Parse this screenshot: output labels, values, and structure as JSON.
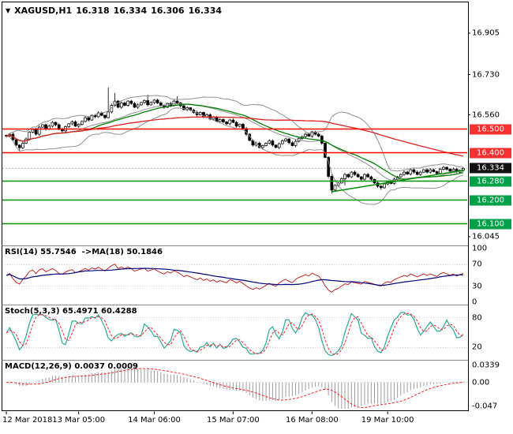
{
  "header": {
    "dropdown_icon": "▼",
    "symbol": "XAGUSD,H1",
    "open": "16.318",
    "high": "16.334",
    "low": "16.306",
    "close": "16.334"
  },
  "price_axis": {
    "plain_ticks": [
      {
        "label": "16.905",
        "value": 16.905
      },
      {
        "label": "16.730",
        "value": 16.73
      },
      {
        "label": "16.560",
        "value": 16.56
      },
      {
        "label": "16.045",
        "value": 16.045
      }
    ],
    "badges": [
      {
        "label": "16.500",
        "value": 16.5,
        "bg": "#f83030",
        "role": "resistance"
      },
      {
        "label": "16.400",
        "value": 16.4,
        "bg": "#f83030",
        "role": "resistance"
      },
      {
        "label": "16.334",
        "value": 16.334,
        "bg": "#111111",
        "role": "current-price"
      },
      {
        "label": "16.280",
        "value": 16.28,
        "bg": "#00a048",
        "role": "support"
      },
      {
        "label": "16.200",
        "value": 16.2,
        "bg": "#00a048",
        "role": "support"
      },
      {
        "label": "16.100",
        "value": 16.1,
        "bg": "#00a048",
        "role": "support"
      }
    ]
  },
  "time_axis": {
    "labels": [
      "12 Mar 2018",
      "13 Mar 05:00",
      "14 Mar 06:00",
      "15 Mar 07:00",
      "16 Mar 08:00",
      "19 Mar 10:00"
    ],
    "bar_indices": [
      0,
      22,
      45,
      69,
      93,
      116
    ]
  },
  "panels": {
    "rsi": {
      "label": "RSI(14) 55.7546  ->MA(18) 50.1846",
      "ticks": [
        {
          "label": "100",
          "value": 100
        },
        {
          "label": "70",
          "value": 70
        },
        {
          "label": "30",
          "value": 30
        },
        {
          "label": "0",
          "value": 0
        }
      ],
      "levels": [
        70,
        30
      ],
      "main_color": "#c22727",
      "ma_color": "#00007f"
    },
    "stoch": {
      "label": "Stoch(5,3,3) 65.4971 60.4288",
      "ticks": [
        {
          "label": "80",
          "value": 80
        },
        {
          "label": "20",
          "value": 20
        }
      ],
      "levels": [
        80,
        20
      ],
      "main_color": "#2ca89a",
      "signal_color": "#ff2020"
    },
    "macd": {
      "label": "MACD(12,26,9) 0.0037 0.0009",
      "ticks": [
        {
          "label": "0.0339",
          "value": 0.0339
        },
        {
          "label": "0.00",
          "value": 0
        },
        {
          "label": "-0.047",
          "value": -0.047
        }
      ],
      "levels": [
        0
      ],
      "hist_color": "#9c9c9c",
      "signal_color": "#ff2020"
    }
  },
  "chart_data": {
    "type": "candlestick",
    "symbol": "XAGUSD",
    "timeframe": "H1",
    "title": "XAGUSD,H1 16.318 16.334 16.306 16.334",
    "ylim": [
      16.012,
      17.035
    ],
    "visible_price_ticks": [
      16.905,
      16.73,
      16.56,
      16.045
    ],
    "closes": [
      16.47,
      16.478,
      16.455,
      16.432,
      16.421,
      16.44,
      16.458,
      16.487,
      16.498,
      16.478,
      16.508,
      16.518,
      16.5,
      16.512,
      16.528,
      16.518,
      16.498,
      16.492,
      16.51,
      16.522,
      16.53,
      16.512,
      16.52,
      16.532,
      16.548,
      16.538,
      16.558,
      16.552,
      16.568,
      16.558,
      16.548,
      16.572,
      16.6,
      16.618,
      16.592,
      16.61,
      16.6,
      16.618,
      16.608,
      16.592,
      16.602,
      16.612,
      16.62,
      16.602,
      16.612,
      16.622,
      16.61,
      16.6,
      16.592,
      16.608,
      16.6,
      16.618,
      16.61,
      16.598,
      16.582,
      16.59,
      16.58,
      16.57,
      16.56,
      16.57,
      16.552,
      16.56,
      16.542,
      16.55,
      16.532,
      16.54,
      16.53,
      16.522,
      16.538,
      16.528,
      16.512,
      16.52,
      16.502,
      16.478,
      16.452,
      16.432,
      16.44,
      16.422,
      16.43,
      16.44,
      16.45,
      16.432,
      16.422,
      16.438,
      16.45,
      16.458,
      16.442,
      16.43,
      16.448,
      16.46,
      16.468,
      16.478,
      16.47,
      16.488,
      16.478,
      16.47,
      16.44,
      16.38,
      16.3,
      16.242,
      16.262,
      16.272,
      16.29,
      16.308,
      16.298,
      16.318,
      16.308,
      16.298,
      16.288,
      16.308,
      16.298,
      16.288,
      16.272,
      16.258,
      16.252,
      16.268,
      16.278,
      16.27,
      16.288,
      16.298,
      16.308,
      16.318,
      16.31,
      16.328,
      16.318,
      16.308,
      16.318,
      16.328,
      16.318,
      16.328,
      16.32,
      16.312,
      16.33,
      16.338,
      16.33,
      16.322,
      16.33,
      16.318,
      16.326,
      16.334
    ],
    "spikes": [
      {
        "i": 4,
        "low": 16.405
      },
      {
        "i": 31,
        "high": 16.675
      },
      {
        "i": 33,
        "high": 16.652
      },
      {
        "i": 43,
        "high": 16.645
      },
      {
        "i": 52,
        "high": 16.638
      },
      {
        "i": 99,
        "low": 16.228
      },
      {
        "i": 103,
        "low": 16.262
      },
      {
        "i": 114,
        "low": 16.243
      }
    ],
    "hlines": [
      {
        "price": 16.5,
        "color": "#ff0000",
        "label": "16.500"
      },
      {
        "price": 16.4,
        "color": "#ff0000",
        "label": "16.400"
      },
      {
        "price": 16.28,
        "color": "#009000",
        "label": "16.280"
      },
      {
        "price": 16.2,
        "color": "#009000",
        "label": "16.200"
      },
      {
        "price": 16.1,
        "color": "#009000",
        "label": "16.100"
      }
    ],
    "current_price": 16.334,
    "trendline": {
      "i1": 99,
      "p1": 16.235,
      "i2": 140,
      "p2": 16.327,
      "color": "#009000"
    },
    "overlays": {
      "bollinger": {
        "period": 20,
        "deviation": 2,
        "color": "#909090"
      },
      "ma_green": {
        "period": 24,
        "color": "#008000"
      },
      "ma_red": {
        "period": 80,
        "color": "#dd2020"
      }
    },
    "indicators": {
      "rsi": {
        "period": 14,
        "ma_period": 18,
        "value": 55.7546,
        "ma_value": 50.1846,
        "range": [
          0,
          100
        ]
      },
      "stoch": {
        "k": 5,
        "d": 3,
        "slowing": 3,
        "value": 65.4971,
        "signal_value": 60.4288,
        "range": [
          0,
          100
        ]
      },
      "macd": {
        "fast": 12,
        "slow": 26,
        "signal": 9,
        "value": 0.0037,
        "signal_value": 0.0009,
        "range": [
          -0.052,
          0.04
        ]
      }
    }
  }
}
